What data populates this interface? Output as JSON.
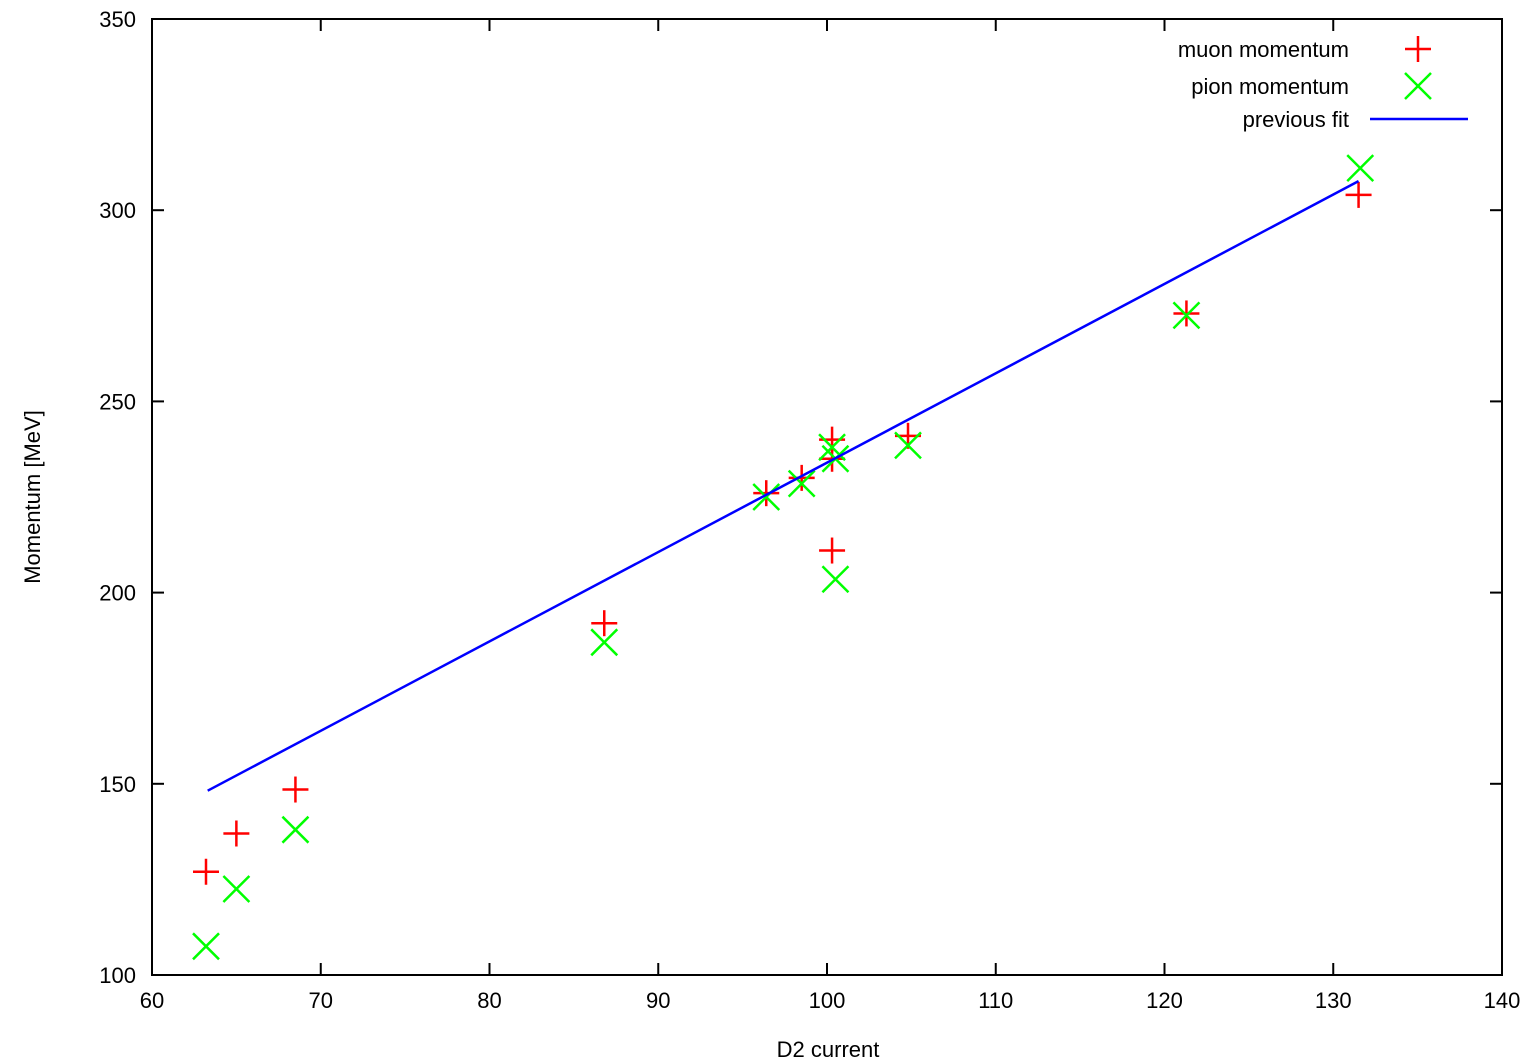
{
  "chart_data": {
    "type": "scatter",
    "title": "",
    "xlabel": "D2 current",
    "ylabel": "Momentum [MeV]",
    "xlim": [
      60,
      140
    ],
    "ylim": [
      100,
      350
    ],
    "xticks": [
      60,
      70,
      80,
      90,
      100,
      110,
      120,
      130,
      140
    ],
    "yticks": [
      100,
      150,
      200,
      250,
      300,
      350
    ],
    "grid": false,
    "legend_position": "top-right",
    "series": [
      {
        "name": "muon momentum",
        "marker": "plus",
        "color": "#ff0000",
        "points": [
          [
            63.2,
            127
          ],
          [
            65.0,
            137
          ],
          [
            68.5,
            148.5
          ],
          [
            86.8,
            192
          ],
          [
            96.4,
            226
          ],
          [
            98.5,
            230
          ],
          [
            100.3,
            240
          ],
          [
            100.3,
            235
          ],
          [
            100.3,
            211
          ],
          [
            104.8,
            241
          ],
          [
            121.3,
            273
          ],
          [
            131.5,
            304
          ]
        ]
      },
      {
        "name": "pion momentum",
        "marker": "cross",
        "color": "#00ff00",
        "points": [
          [
            63.2,
            107.5
          ],
          [
            65.0,
            122.5
          ],
          [
            68.5,
            138
          ],
          [
            86.8,
            187
          ],
          [
            96.4,
            225
          ],
          [
            98.5,
            228.5
          ],
          [
            100.3,
            238
          ],
          [
            100.5,
            235
          ],
          [
            100.5,
            203.5
          ],
          [
            104.8,
            238.5
          ],
          [
            121.3,
            272.5
          ],
          [
            131.6,
            311
          ]
        ]
      },
      {
        "name": "previous fit",
        "type": "line",
        "color": "#0000ff",
        "points": [
          [
            63.3,
            148.2
          ],
          [
            131.5,
            307.6
          ]
        ]
      }
    ]
  }
}
